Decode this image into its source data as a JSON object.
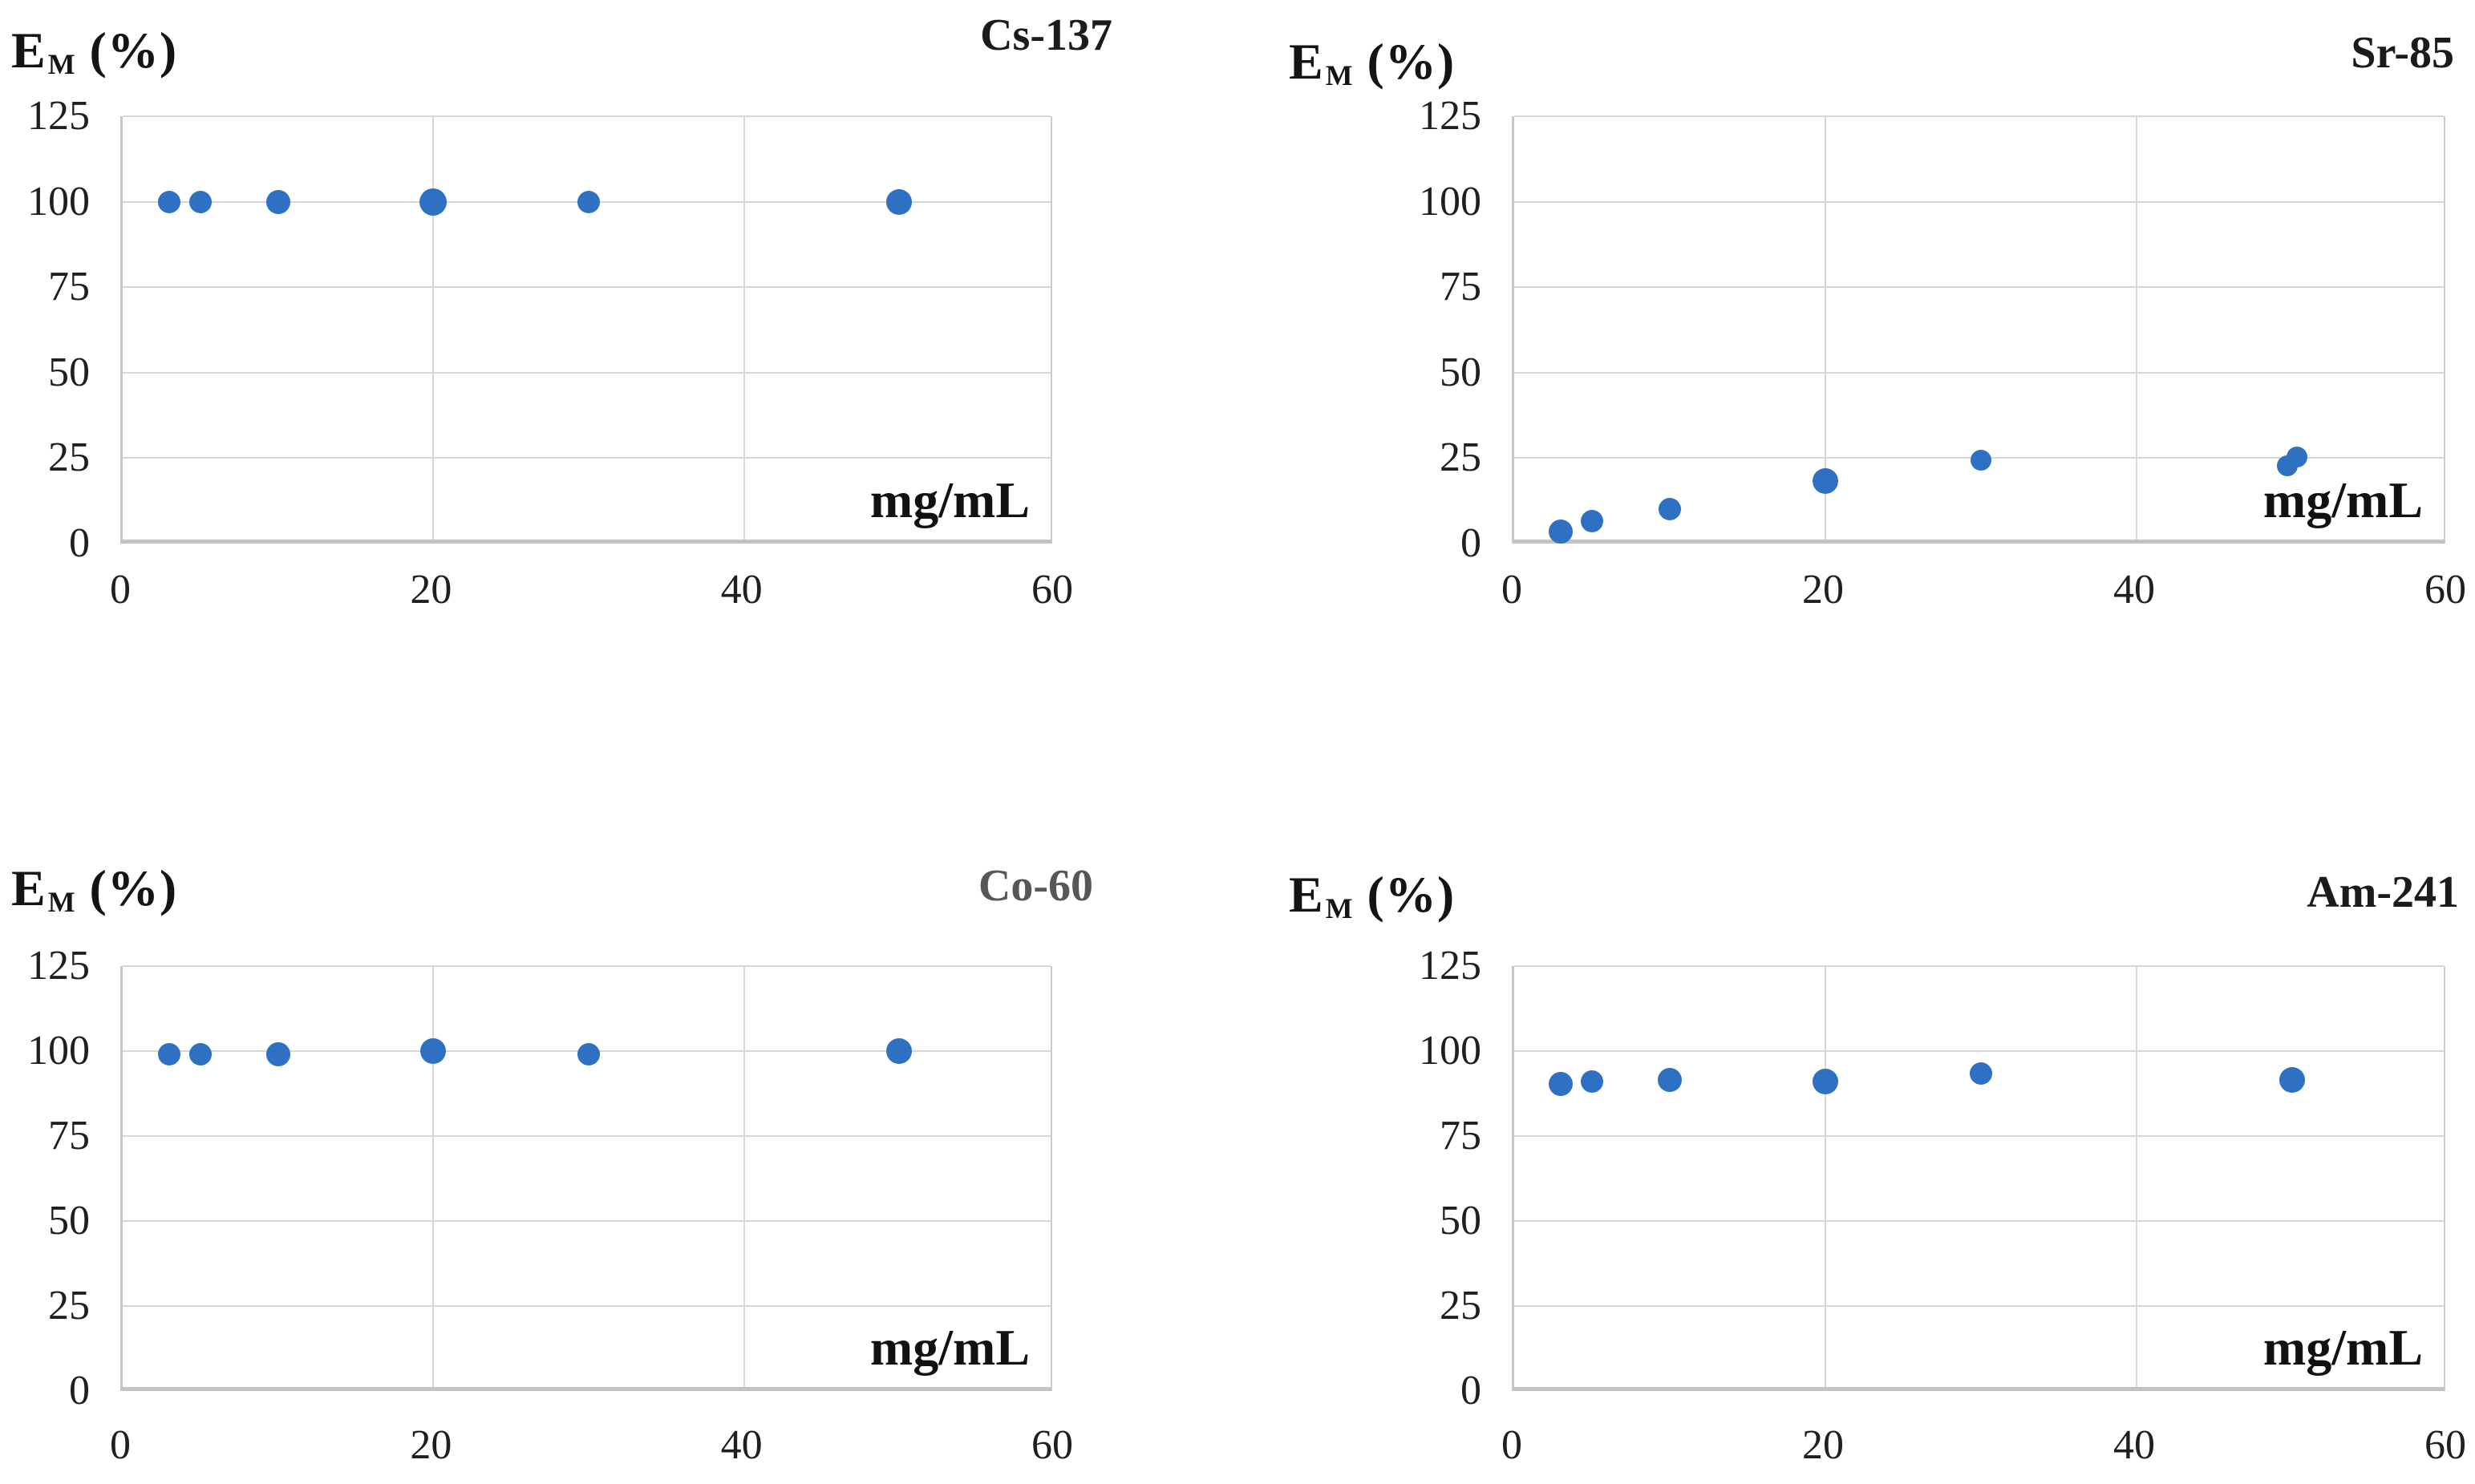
{
  "figure": {
    "y_axis_label": {
      "base": "E",
      "sub": "M",
      "rest": " (%)"
    },
    "x_axis_unit": "mg/mL",
    "marker_color": "#2e70c2",
    "grid_color": "#d6d6d6",
    "text_color": "#1b1b1b"
  },
  "chart_data": [
    {
      "type": "scatter",
      "title": "Cs-137",
      "title_color": "#1b1b1b",
      "xlabel": "mg/mL",
      "ylabel": "EM (%)",
      "xlim": [
        0,
        60
      ],
      "ylim": [
        0,
        125
      ],
      "xticks": [
        0,
        20,
        40,
        60
      ],
      "yticks": [
        0,
        25,
        50,
        75,
        100,
        125
      ],
      "grid": true,
      "legend": false,
      "points": [
        {
          "x": 3,
          "y": 100,
          "r": 14
        },
        {
          "x": 5,
          "y": 100,
          "r": 14
        },
        {
          "x": 10,
          "y": 100,
          "r": 15
        },
        {
          "x": 20,
          "y": 100,
          "r": 17
        },
        {
          "x": 30,
          "y": 100,
          "r": 14
        },
        {
          "x": 50,
          "y": 100,
          "r": 16
        }
      ]
    },
    {
      "type": "scatter",
      "title": "Sr-85",
      "title_color": "#1b1b1b",
      "xlabel": "mg/mL",
      "ylabel": "EM (%)",
      "xlim": [
        0,
        60
      ],
      "ylim": [
        0,
        125
      ],
      "xticks": [
        0,
        20,
        40,
        60
      ],
      "yticks": [
        0,
        25,
        50,
        75,
        100,
        125
      ],
      "grid": true,
      "legend": false,
      "points": [
        {
          "x": 3,
          "y": 3.5,
          "r": 15
        },
        {
          "x": 5,
          "y": 6.5,
          "r": 14
        },
        {
          "x": 10,
          "y": 10,
          "r": 14
        },
        {
          "x": 20,
          "y": 18.3,
          "r": 16
        },
        {
          "x": 30,
          "y": 24.5,
          "r": 13
        },
        {
          "x": 49.7,
          "y": 22.7,
          "r": 13
        },
        {
          "x": 50.3,
          "y": 25.3,
          "r": 13
        }
      ]
    },
    {
      "type": "scatter",
      "title": "Co-60",
      "title_color": "#575757",
      "xlabel": "mg/mL",
      "ylabel": "EM (%)",
      "xlim": [
        0,
        60
      ],
      "ylim": [
        0,
        125
      ],
      "xticks": [
        0,
        20,
        40,
        60
      ],
      "yticks": [
        0,
        25,
        50,
        75,
        100,
        125
      ],
      "grid": true,
      "legend": false,
      "points": [
        {
          "x": 3,
          "y": 99,
          "r": 14
        },
        {
          "x": 5,
          "y": 99,
          "r": 14
        },
        {
          "x": 10,
          "y": 99,
          "r": 15
        },
        {
          "x": 20,
          "y": 100,
          "r": 16
        },
        {
          "x": 30,
          "y": 99,
          "r": 14
        },
        {
          "x": 50,
          "y": 100,
          "r": 16
        }
      ]
    },
    {
      "type": "scatter",
      "title": "Am-241",
      "title_color": "#1b1b1b",
      "xlabel": "mg/mL",
      "ylabel": "EM (%)",
      "xlim": [
        0,
        60
      ],
      "ylim": [
        0,
        125
      ],
      "xticks": [
        0,
        20,
        40,
        60
      ],
      "yticks": [
        0,
        25,
        50,
        75,
        100,
        125
      ],
      "grid": true,
      "legend": false,
      "points": [
        {
          "x": 3,
          "y": 90.3,
          "r": 15
        },
        {
          "x": 5,
          "y": 91,
          "r": 14
        },
        {
          "x": 10,
          "y": 91.5,
          "r": 15
        },
        {
          "x": 20,
          "y": 91,
          "r": 16
        },
        {
          "x": 30,
          "y": 93.5,
          "r": 14
        },
        {
          "x": 50,
          "y": 91.5,
          "r": 16
        }
      ]
    }
  ]
}
